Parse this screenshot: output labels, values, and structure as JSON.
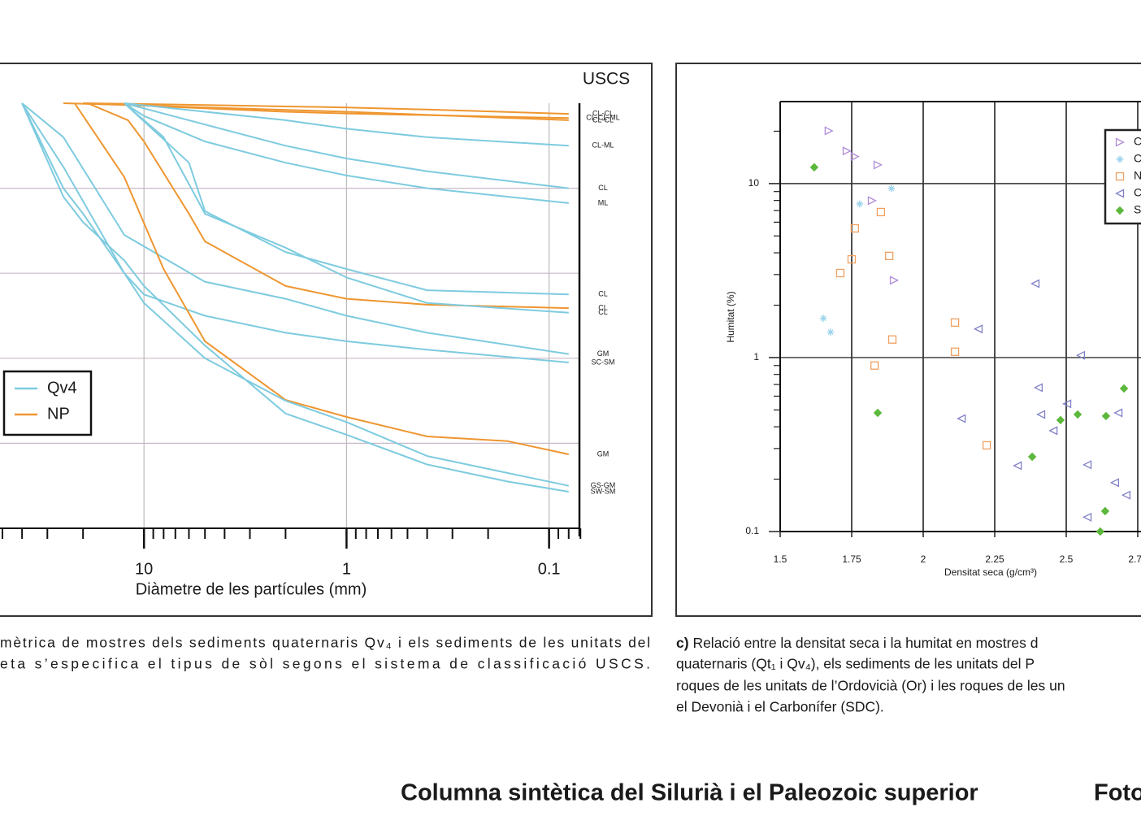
{
  "chart_data": [
    {
      "type": "line",
      "x_label": "Diàmetre de les partícules (mm)",
      "xlog": true,
      "xlim": [
        51.4,
        0.0708
      ],
      "xticks": [
        10,
        1,
        0.1
      ],
      "xminor": [
        50,
        40,
        30,
        20,
        9,
        8,
        7,
        6,
        5,
        4,
        3,
        2,
        0.9,
        0.8,
        0.7,
        0.6,
        0.5,
        0.4,
        0.3,
        0.2,
        0.09,
        0.08,
        0.07
      ],
      "ylim": [
        0,
        100
      ],
      "ygrid": [
        20,
        40,
        60,
        80
      ],
      "uscs_title": "USCS",
      "legend": [
        {
          "name": "Qv4",
          "color": "#7ecbdf"
        },
        {
          "name": "NP",
          "color": "#ef9630"
        }
      ],
      "series": [
        {
          "group": 1,
          "uscs": "CL-CL",
          "x": [
            20,
            10,
            1,
            0.4,
            0.08
          ],
          "values": [
            100,
            99.8,
            99,
            98.5,
            97.5
          ]
        },
        {
          "group": 1,
          "uscs": "CL-CL-ML",
          "x": [
            25,
            12.5,
            2,
            1,
            0.08
          ],
          "values": [
            100,
            99.6,
            98,
            97.6,
            96.5
          ]
        },
        {
          "group": 1,
          "uscs": "CL-CL",
          "x": [
            20,
            5,
            1,
            0.08
          ],
          "values": [
            100,
            99,
            98,
            96
          ]
        },
        {
          "group": 0,
          "uscs": "CL-ML",
          "x": [
            12.5,
            5,
            2,
            1,
            0.4,
            0.08
          ],
          "values": [
            100,
            98,
            96,
            94,
            92,
            90
          ]
        },
        {
          "group": 0,
          "uscs": "CL",
          "x": [
            12.5,
            5,
            2,
            1,
            0.4,
            0.08
          ],
          "values": [
            100,
            95,
            90,
            87,
            84,
            80
          ]
        },
        {
          "group": 0,
          "uscs": "ML",
          "x": [
            12.5,
            10,
            5,
            2,
            1,
            0.4,
            0.08
          ],
          "values": [
            100,
            97,
            91,
            86,
            83,
            80,
            76.5
          ]
        },
        {
          "group": 0,
          "uscs": "CL",
          "x": [
            12.5,
            6,
            5,
            2,
            1,
            0.4,
            0.08
          ],
          "values": [
            100,
            86,
            74.6,
            65,
            61,
            56,
            55
          ]
        },
        {
          "group": 1,
          "uscs": "CL",
          "x": [
            19,
            12,
            10,
            6,
            5,
            2,
            1,
            0.4,
            0.08
          ],
          "values": [
            100,
            96,
            91,
            74,
            67.5,
            57,
            54,
            52.6,
            51.8
          ]
        },
        {
          "group": 0,
          "uscs": "CL",
          "x": [
            12.5,
            8,
            5,
            2,
            1,
            0.4,
            0.08
          ],
          "values": [
            100,
            92,
            74,
            66,
            59,
            53,
            50.7
          ]
        },
        {
          "group": 0,
          "uscs": "GM",
          "x": [
            40,
            25,
            12.5,
            5,
            2,
            1,
            0.4,
            0.08
          ],
          "values": [
            100,
            92,
            69,
            58,
            54,
            50,
            46,
            41
          ]
        },
        {
          "group": 0,
          "uscs": "SC-SM",
          "x": [
            40,
            25,
            12.5,
            10,
            5,
            2,
            1,
            0.4,
            0.08
          ],
          "values": [
            100,
            85,
            60,
            55,
            50,
            46,
            44,
            42,
            39
          ]
        },
        {
          "group": 1,
          "uscs": "GM",
          "x": [
            22,
            12.5,
            8,
            5,
            2,
            1,
            0.4,
            0.16,
            0.08
          ],
          "values": [
            100,
            82.6,
            61,
            44,
            30.2,
            26.2,
            21.6,
            20.5,
            17.4
          ]
        },
        {
          "group": 0,
          "uscs": "GS-GM",
          "x": [
            40,
            25,
            20,
            12.5,
            10,
            5,
            2,
            1,
            0.4,
            0.16,
            0.08
          ],
          "values": [
            100,
            80,
            74,
            60,
            53,
            40,
            30,
            25,
            17,
            13,
            10
          ]
        },
        {
          "group": 0,
          "uscs": "SW-SM",
          "x": [
            40,
            25,
            20,
            12.5,
            10,
            5,
            2,
            1,
            0.4,
            0.16,
            0.08
          ],
          "values": [
            100,
            78,
            72,
            63,
            57,
            43,
            27,
            22,
            15,
            11,
            8.6
          ]
        }
      ]
    },
    {
      "type": "scatter",
      "x_label": "Densitat seca (g/cm³)",
      "y_label": "Humitat (%)",
      "ylog": true,
      "xlim": [
        1.5,
        3
      ],
      "xticks": [
        1.5,
        1.75,
        2,
        2.25,
        2.5,
        2.75
      ],
      "ylim": [
        0.1,
        29.6
      ],
      "yticks": [
        0.1,
        1,
        10
      ],
      "yminor": [
        0.2,
        0.3,
        0.4,
        0.5,
        0.6,
        0.7,
        0.8,
        0.9,
        2,
        3,
        4,
        5,
        6,
        7,
        8,
        9,
        20
      ],
      "grid": true,
      "series": [
        {
          "name": "C",
          "marker": "triangle-right",
          "color": "#b08cd8",
          "x": [
            1.67,
            1.733,
            1.761,
            1.841,
            1.821,
            1.898
          ],
          "values": [
            20.1,
            15.4,
            14.3,
            12.8,
            7.98,
            2.78
          ]
        },
        {
          "name": "C",
          "marker": "star",
          "color": "#9dd4ec",
          "x": [
            1.778,
            1.889,
            1.651,
            1.676
          ],
          "values": [
            7.64,
            9.37,
            1.68,
            1.4
          ]
        },
        {
          "name": "N",
          "marker": "square",
          "color": "#f0a060",
          "x": [
            1.852,
            1.761,
            1.75,
            1.71,
            1.881,
            1.892,
            1.83,
            2.111,
            2.111,
            2.222
          ],
          "values": [
            6.86,
            5.53,
            3.67,
            3.06,
            3.84,
            1.27,
            0.9,
            1.59,
            1.08,
            0.313
          ]
        },
        {
          "name": "C",
          "marker": "triangle-left",
          "color": "#8080c8",
          "x": [
            2.392,
            2.193,
            2.551,
            2.403,
            2.412,
            2.503,
            2.455,
            2.134,
            2.33,
            2.574,
            2.67,
            2.71,
            2.574,
            2.682
          ],
          "values": [
            2.66,
            1.46,
            1.03,
            0.672,
            0.471,
            0.542,
            0.38,
            0.446,
            0.239,
            0.242,
            0.191,
            0.162,
            0.121,
            0.481
          ]
        },
        {
          "name": "S",
          "marker": "diamond",
          "color": "#5cb83c",
          "x": [
            1.619,
            1.841,
            2.381,
            2.48,
            2.54,
            2.639,
            2.702,
            2.636,
            2.619
          ],
          "values": [
            12.4,
            0.481,
            0.269,
            0.437,
            0.471,
            0.461,
            0.664,
            0.131,
            0.1
          ]
        }
      ]
    }
  ],
  "captions": {
    "left": [
      "mètrica de mostres dels sediments quaternaris Qv₄ i els sediments de les unitats del",
      "eta s’especifica el tipus de sòl segons el sistema de classificació USCS."
    ],
    "right_label": "c)",
    "right": [
      "Relació entre la densitat seca i la humitat en mostres d",
      "quaternaris (Qt₁ i Qv₄), els sediments de les unitats del P",
      "roques de les unitats de l’Ordovicià (Or) i les roques de les un",
      "el Devonià i el Carbonífer (SDC)."
    ]
  },
  "heading": {
    "title": "Columna sintètica del Silurià i el Paleozoic superior",
    "next": "Foto"
  }
}
